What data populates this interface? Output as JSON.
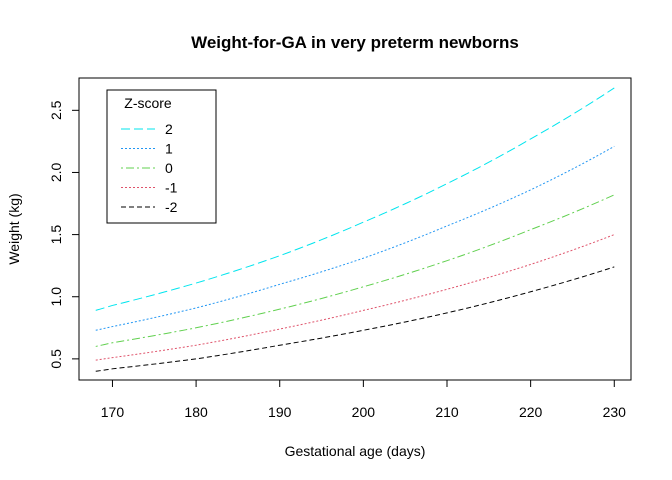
{
  "chart_data": {
    "type": "line",
    "title": "Weight-for-GA in very preterm newborns",
    "xlabel": "Gestational age (days)",
    "ylabel": "Weight (kg)",
    "xlim": [
      166,
      232
    ],
    "ylim": [
      0.33,
      2.76
    ],
    "xticks": [
      170,
      180,
      190,
      200,
      210,
      220,
      230
    ],
    "yticks": [
      0.5,
      1.0,
      1.5,
      2.0,
      2.5
    ],
    "ytick_labels": [
      "0.5",
      "1.0",
      "1.5",
      "2.0",
      "2.5"
    ],
    "legend": {
      "title": "Z-score",
      "position": "top-left"
    },
    "x": [
      168,
      170,
      180,
      190,
      200,
      210,
      220,
      230
    ],
    "series": [
      {
        "name": "2",
        "color": "#00e5ee",
        "dash": "9 4",
        "values": [
          0.89,
          0.93,
          1.11,
          1.33,
          1.6,
          1.91,
          2.27,
          2.68
        ]
      },
      {
        "name": "1",
        "color": "#2196f3",
        "dash": "2 2",
        "values": [
          0.73,
          0.76,
          0.91,
          1.1,
          1.31,
          1.57,
          1.86,
          2.21
        ]
      },
      {
        "name": "0",
        "color": "#61d04f",
        "dash": "2 3 8 3",
        "values": [
          0.6,
          0.63,
          0.75,
          0.9,
          1.08,
          1.29,
          1.54,
          1.82
        ]
      },
      {
        "name": "-1",
        "color": "#df536b",
        "dash": "2 2",
        "values": [
          0.49,
          0.51,
          0.61,
          0.74,
          0.89,
          1.06,
          1.26,
          1.5
        ]
      },
      {
        "name": "-2",
        "color": "#000000",
        "dash": "5 3",
        "values": [
          0.4,
          0.42,
          0.5,
          0.61,
          0.73,
          0.87,
          1.04,
          1.24
        ]
      }
    ]
  }
}
